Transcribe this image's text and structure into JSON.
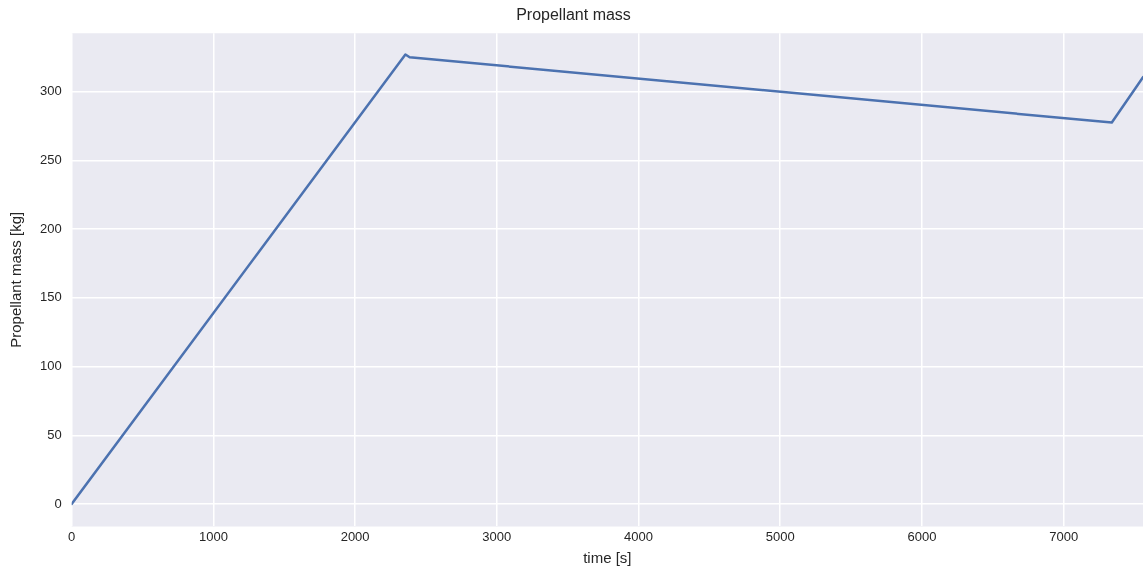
{
  "chart_data": {
    "type": "line",
    "title": "Propellant mass",
    "xlabel": "time [s]",
    "ylabel": "Propellant mass [kg]",
    "x": [
      0,
      2355,
      2385,
      7340,
      7560
    ],
    "series": [
      {
        "color": "#4c72b0",
        "values": [
          0,
          327,
          325,
          277.5,
          310.5
        ]
      }
    ],
    "xlim": [
      0,
      7560
    ],
    "xticks": [
      0,
      1000,
      2000,
      3000,
      4000,
      5000,
      6000,
      7000
    ],
    "ylim": [
      -16.3,
      342.5
    ],
    "yticks": [
      0,
      50,
      100,
      150,
      200,
      250,
      300
    ],
    "grid": true,
    "legend": false,
    "marker": "none",
    "line_style": "solid"
  }
}
